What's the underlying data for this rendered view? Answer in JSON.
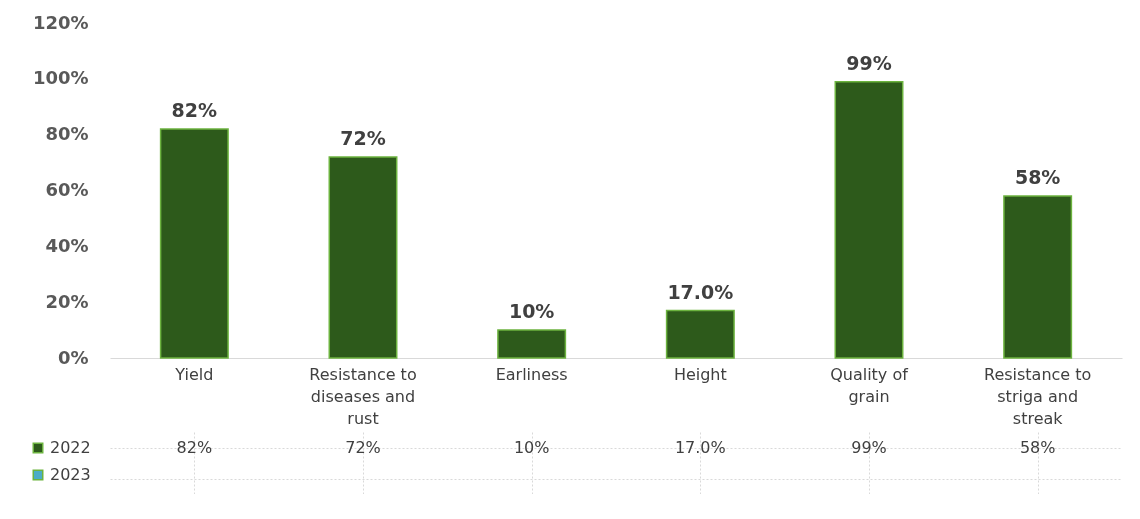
{
  "chart_data": {
    "type": "bar",
    "categories": [
      "Yield",
      "Resistance to diseases and rust",
      "Earliness",
      "Height",
      "Quality of grain",
      "Resistance to striga and streak"
    ],
    "series": [
      {
        "name": "2022",
        "color": "#2d5a1b",
        "values": [
          82,
          72,
          10,
          17,
          99,
          58
        ],
        "value_labels": [
          "82%",
          "72%",
          "10%",
          "17.0%",
          "99%",
          "58%"
        ]
      },
      {
        "name": "2023",
        "color": "#4bacc6",
        "values": [
          null,
          null,
          null,
          null,
          null,
          null
        ]
      }
    ],
    "ylim": [
      0,
      120
    ],
    "yticks": [
      {
        "value": 0,
        "label": "0%"
      },
      {
        "value": 20,
        "label": "20%"
      },
      {
        "value": 40,
        "label": "40%"
      },
      {
        "value": 60,
        "label": "60%"
      },
      {
        "value": 80,
        "label": "80%"
      },
      {
        "value": 100,
        "label": "100%"
      },
      {
        "value": 120,
        "label": "120%"
      }
    ],
    "legend": "bottom left",
    "grid": false
  }
}
